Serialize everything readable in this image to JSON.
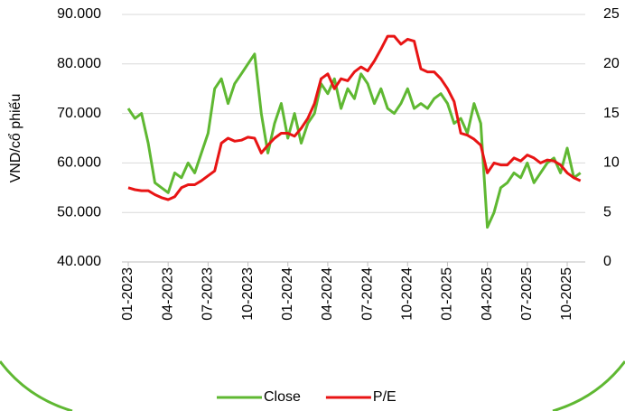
{
  "chart_data": {
    "type": "line",
    "y_label": "VND/cổ phiếu",
    "categories": [
      "01-2023",
      null,
      null,
      null,
      null,
      null,
      "04-2023",
      null,
      null,
      null,
      null,
      null,
      "07-2023",
      null,
      null,
      null,
      null,
      null,
      "10-2023",
      null,
      null,
      null,
      null,
      null,
      "01-2024",
      null,
      null,
      null,
      null,
      null,
      "04-2024",
      null,
      null,
      null,
      null,
      null,
      "07-2024",
      null,
      null,
      null,
      null,
      null,
      "10-2024",
      null,
      null,
      null,
      null,
      null,
      "01-2025",
      null,
      null,
      null,
      null,
      null,
      "04-2025",
      null,
      null,
      null,
      null,
      null,
      "07-2025",
      null,
      null,
      null,
      null,
      null,
      "10-2025",
      null,
      null
    ],
    "series": [
      {
        "name": "Close",
        "color": "#5fb832",
        "values": [
          71000,
          69000,
          70000,
          64000,
          56000,
          55000,
          54000,
          58000,
          57000,
          60000,
          58000,
          62000,
          66000,
          75000,
          77000,
          72000,
          76000,
          78000,
          80000,
          82000,
          70000,
          62000,
          68000,
          72000,
          65000,
          70000,
          64000,
          68000,
          70000,
          76000,
          74000,
          77000,
          71000,
          75000,
          73000,
          78000,
          76000,
          72000,
          75000,
          71000,
          70000,
          72000,
          75000,
          71000,
          72000,
          71000,
          73000,
          74000,
          72000,
          68000,
          69000,
          66000,
          72000,
          68000,
          47000,
          50000,
          55000,
          56000,
          58000,
          57000,
          60000,
          56000,
          58000,
          60000,
          61000,
          58000,
          63000,
          57000,
          58000
        ]
      },
      {
        "name": "P/E",
        "color": "#e81414",
        "axis": "y2",
        "values": [
          7.5,
          7.3,
          7.2,
          7.2,
          6.8,
          6.5,
          6.3,
          6.6,
          7.5,
          7.8,
          7.8,
          8.2,
          8.7,
          9.2,
          12.0,
          12.5,
          12.2,
          12.3,
          12.6,
          12.5,
          11.0,
          11.8,
          12.5,
          13.0,
          13.0,
          12.7,
          13.5,
          14.5,
          16.0,
          18.5,
          19.0,
          17.5,
          18.5,
          18.3,
          19.2,
          19.7,
          19.3,
          20.3,
          21.5,
          22.8,
          22.8,
          22.0,
          22.5,
          22.3,
          19.5,
          19.2,
          19.2,
          18.5,
          17.5,
          16.2,
          13.0,
          12.8,
          12.4,
          11.8,
          9.0,
          10.0,
          9.8,
          9.8,
          10.5,
          10.2,
          10.8,
          10.5,
          10.0,
          10.3,
          10.2,
          9.8,
          9.0,
          8.5,
          8.2
        ]
      }
    ],
    "ylim": [
      40000,
      90000
    ],
    "yticks": [
      {
        "value": 40000,
        "label": "40.000"
      },
      {
        "value": 50000,
        "label": "50.000"
      },
      {
        "value": 60000,
        "label": "60.000"
      },
      {
        "value": 70000,
        "label": "70.000"
      },
      {
        "value": 80000,
        "label": "80.000"
      },
      {
        "value": 90000,
        "label": "90.000"
      }
    ],
    "y2lim": [
      0,
      25
    ],
    "y2ticks": [
      0,
      5,
      10,
      15,
      20,
      25
    ],
    "grid": true,
    "legend": "bottom"
  }
}
